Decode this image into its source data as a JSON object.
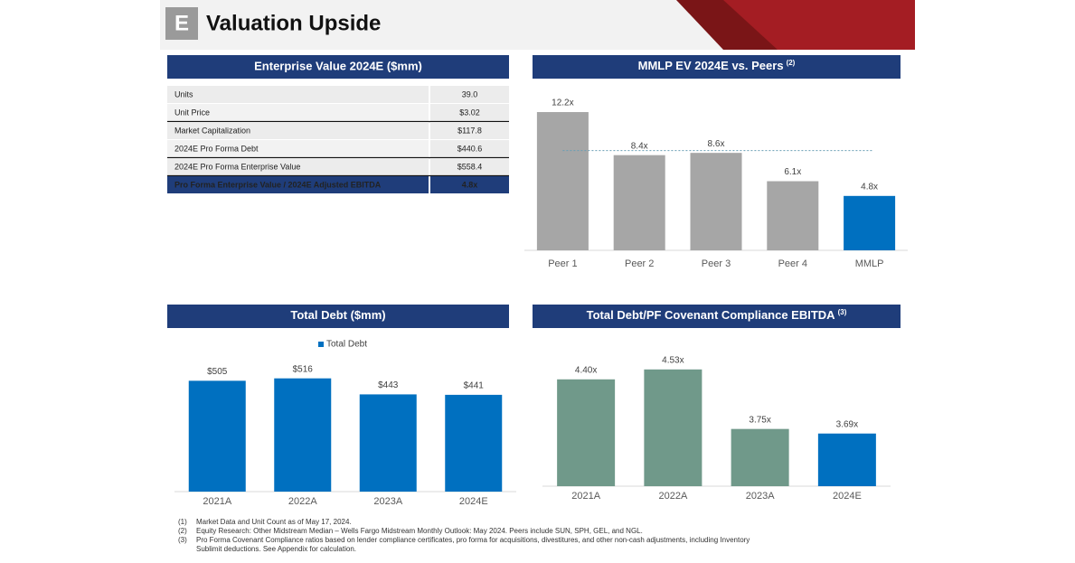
{
  "header": {
    "icon": "E",
    "title": "Valuation Upside"
  },
  "table": {
    "title": "Enterprise Value 2024E ($mm)",
    "rows": [
      [
        "Units",
        "39.0"
      ],
      [
        "Unit Price",
        "$3.02"
      ],
      [
        "Market Capitalization",
        "$117.8"
      ],
      [
        "2024E Pro Forma Debt",
        "$440.6"
      ],
      [
        "2024E Pro Forma Enterprise Value",
        "$558.4"
      ],
      [
        "Pro Forma Enterprise Value / 2024E Adjusted EBITDA",
        "4.8x"
      ]
    ]
  },
  "chart_data": [
    {
      "type": "bar",
      "title": "MMLP EV 2024E vs. Peers",
      "title_note": "(2)",
      "categories": [
        "Peer 1",
        "Peer 2",
        "Peer 3",
        "Peer 4",
        "MMLP"
      ],
      "values": [
        12.2,
        8.4,
        8.6,
        6.1,
        4.8
      ],
      "value_labels": [
        "12.2x",
        "8.4x",
        "8.6x",
        "6.1x",
        "4.8x"
      ],
      "colors": [
        "#a6a6a6",
        "#a6a6a6",
        "#a6a6a6",
        "#a6a6a6",
        "#0070c0"
      ],
      "reference_line": 8.8,
      "ylim": [
        0,
        13
      ]
    },
    {
      "type": "bar",
      "title": "Total Debt ($mm)",
      "categories": [
        "2021A",
        "2022A",
        "2023A",
        "2024E"
      ],
      "series": [
        {
          "name": "Total Debt",
          "color": "#0070c0",
          "values": [
            505,
            516,
            443,
            441
          ],
          "value_labels": [
            "$505",
            "$516",
            "$443",
            "$441"
          ]
        }
      ],
      "ylim": [
        0,
        560
      ]
    },
    {
      "type": "bar",
      "title": "Total Debt/PF Covenant Compliance EBITDA",
      "title_note": "(3)",
      "categories": [
        "2021A",
        "2022A",
        "2023A",
        "2024E"
      ],
      "values": [
        4.4,
        4.53,
        3.75,
        3.69
      ],
      "value_labels": [
        "4.40x",
        "4.53x",
        "3.75x",
        "3.69x"
      ],
      "colors": [
        "#70998a",
        "#70998a",
        "#70998a",
        "#0070c0"
      ],
      "ylim": [
        3.0,
        4.8
      ]
    }
  ],
  "footnotes": [
    {
      "marker": "(1)",
      "lines": [
        "Market Data and Unit Count as of May 17, 2024."
      ]
    },
    {
      "marker": "(2)",
      "lines": [
        "Equity Research: Other Midstream Median – Wells Fargo Midstream Monthly Outlook: May 2024. Peers include SUN, SPH, GEL, and NGL."
      ]
    },
    {
      "marker": "(3)",
      "lines": [
        "Pro Forma Covenant Compliance ratios based on lender compliance certificates, pro forma for acquisitions, divestitures, and other non-cash adjustments, including Inventory",
        "Sublimit deductions. See Appendix for calculation."
      ]
    }
  ]
}
